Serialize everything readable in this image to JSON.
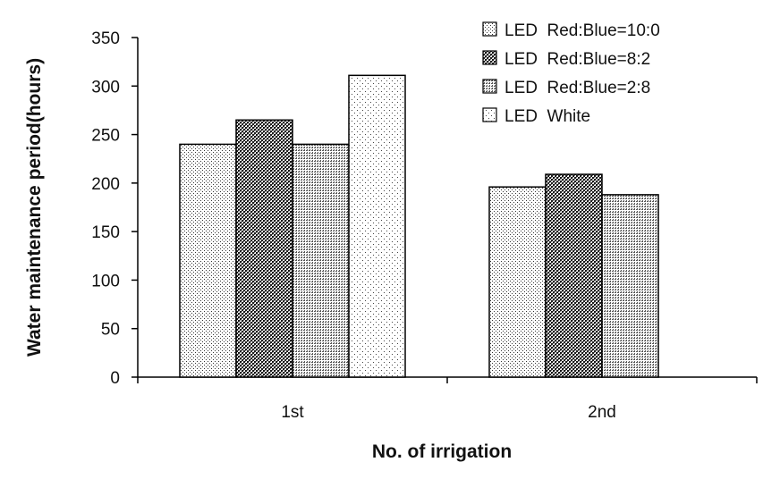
{
  "chart_data": {
    "type": "bar",
    "title": "",
    "xlabel": "No. of irrigation",
    "ylabel": "Water maintenance period(hours)",
    "categories": [
      "1st",
      "2nd"
    ],
    "ylim": [
      0,
      350
    ],
    "yticks": [
      0,
      50,
      100,
      150,
      200,
      250,
      300,
      350
    ],
    "grid": false,
    "legend_position": "top-right",
    "series": [
      {
        "name": "LED  Red:Blue=10:0",
        "pattern": "sparse-dots",
        "values": [
          240,
          196
        ]
      },
      {
        "name": "LED  Red:Blue=8:2",
        "pattern": "checker",
        "values": [
          265,
          209
        ]
      },
      {
        "name": "LED  Red:Blue=2:8",
        "pattern": "dense-dots",
        "values": [
          240,
          188
        ]
      },
      {
        "name": "LED  White",
        "pattern": "fine-dots",
        "values": [
          311,
          null
        ]
      }
    ]
  }
}
